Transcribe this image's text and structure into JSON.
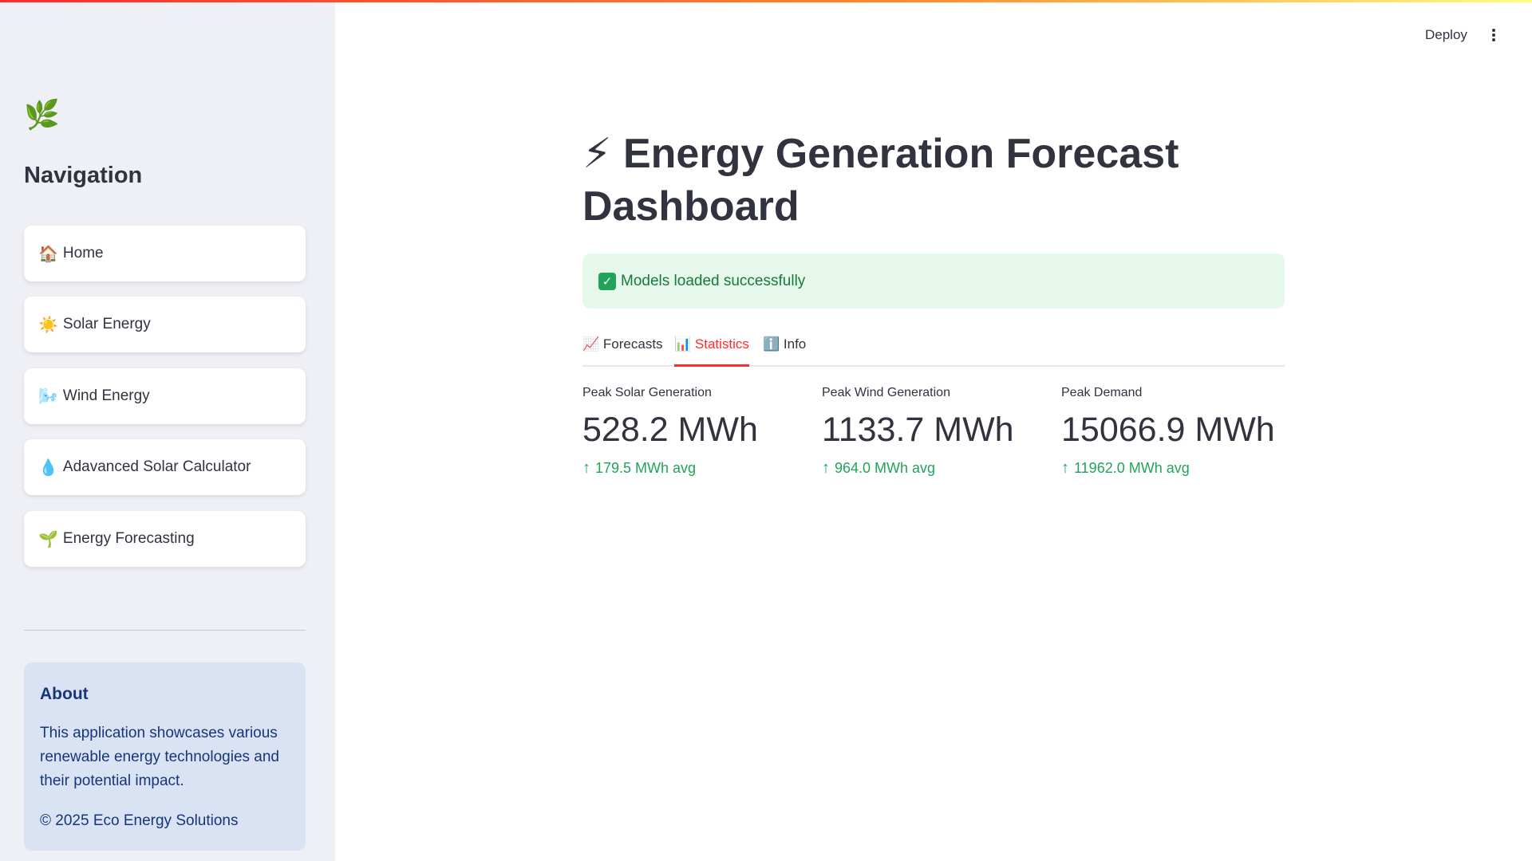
{
  "sidebar": {
    "logo_icon": "🌿",
    "nav_title": "Navigation",
    "items": [
      {
        "icon": "🏠",
        "label": "Home"
      },
      {
        "icon": "☀️",
        "label": "Solar Energy"
      },
      {
        "icon": "🌬️",
        "label": "Wind Energy"
      },
      {
        "icon": "💧",
        "label": "Adavanced Solar Calculator"
      },
      {
        "icon": "🌱",
        "label": "Energy Forecasting"
      }
    ],
    "about": {
      "title": "About",
      "text": "This application showcases various renewable energy technologies and their potential impact.",
      "copyright": "© 2025 Eco Energy Solutions"
    }
  },
  "header": {
    "deploy_label": "Deploy"
  },
  "main": {
    "title_icon": "⚡",
    "title": "Energy Generation Forecast Dashboard",
    "success_message": "Models loaded successfully",
    "tabs": [
      {
        "icon": "📈",
        "label": "Forecasts"
      },
      {
        "icon": "📊",
        "label": "Statistics"
      },
      {
        "icon": "ℹ️",
        "label": "Info"
      }
    ],
    "metrics": [
      {
        "label": "Peak Solar Generation",
        "value": "528.2 MWh",
        "delta": "179.5 MWh avg"
      },
      {
        "label": "Peak Wind Generation",
        "value": "1133.7 MWh",
        "delta": "964.0 MWh avg"
      },
      {
        "label": "Peak Demand",
        "value": "15066.9 MWh",
        "delta": "11962.0 MWh avg"
      }
    ]
  },
  "colors": {
    "accent": "#ff2b2b",
    "success_bg": "#e6f7ec",
    "success_text": "#177a3b",
    "delta_green": "#21a45a",
    "about_bg": "#d9e3f4"
  }
}
